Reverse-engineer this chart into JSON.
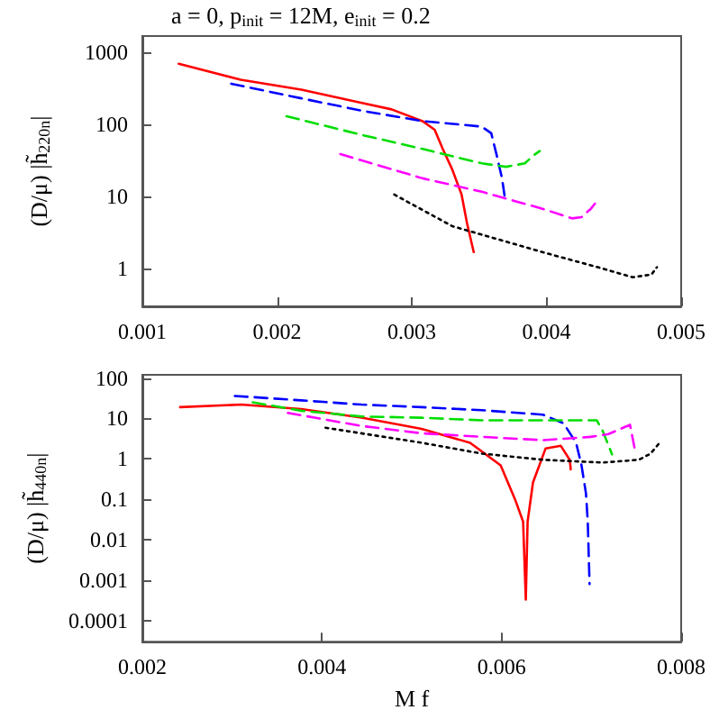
{
  "chart_data": [
    {
      "type": "line",
      "title": "a = 0, p$_{init}$ = 12M, e$_{init}$ = 0.2",
      "ylabel": "(D/μ) |h̃$_{220n}$|",
      "log": "y",
      "xlim": [
        0.001,
        0.005
      ],
      "xticks": [
        0.001,
        0.002,
        0.003,
        0.004,
        0.005
      ],
      "ylim": [
        0.3,
        1700
      ],
      "yticks": [
        1,
        10,
        100,
        1000
      ],
      "series": [
        {
          "color": "#ff0000",
          "line_style": "solid",
          "x": [
            0.00127,
            0.00173,
            0.00218,
            0.00263,
            0.00285,
            0.00308,
            0.00317,
            0.00323,
            0.0033,
            0.00337,
            0.00341,
            0.00346
          ],
          "values": [
            700,
            420,
            306,
            200,
            163,
            112,
            85,
            46,
            24,
            10.7,
            4.3,
            1.7
          ]
        },
        {
          "color": "#0000ff",
          "line_style": "dashed",
          "x": [
            0.00166,
            0.00218,
            0.00263,
            0.00308,
            0.00352,
            0.00359,
            0.00363,
            0.00367,
            0.00369
          ],
          "values": [
            370,
            232,
            156,
            112,
            94,
            76,
            38,
            18,
            10
          ]
        },
        {
          "color": "#00dd00",
          "line_style": "dashed",
          "x": [
            0.00207,
            0.00263,
            0.00308,
            0.00352,
            0.0037,
            0.00384,
            0.0039,
            0.00395
          ],
          "values": [
            131,
            72,
            46,
            29,
            26,
            29,
            37,
            43
          ]
        },
        {
          "color": "#ff00ff",
          "line_style": "dashed",
          "x": [
            0.00247,
            0.00308,
            0.00352,
            0.00397,
            0.00419,
            0.00426,
            0.00433,
            0.00436
          ],
          "values": [
            39,
            18,
            11.7,
            6.8,
            5,
            5.2,
            6.8,
            8
          ]
        },
        {
          "color": "#000000",
          "line_style": "dotted",
          "x": [
            0.00287,
            0.0033,
            0.00397,
            0.00442,
            0.00464,
            0.00478,
            0.00482
          ],
          "values": [
            10.7,
            3.9,
            1.7,
            1.0,
            0.76,
            0.83,
            1.05
          ]
        }
      ]
    },
    {
      "type": "line",
      "xlabel": "M f",
      "ylabel": "(D/μ) |h̃$_{440n}$|",
      "log": "y",
      "xlim": [
        0.002,
        0.008
      ],
      "xticks": [
        0.002,
        0.004,
        0.006,
        0.008
      ],
      "ylim": [
        3e-05,
        120
      ],
      "yticks": [
        0.0001,
        0.001,
        0.01,
        0.1,
        1,
        10,
        100
      ],
      "series": [
        {
          "color": "#ff0000",
          "line_style": "solid",
          "x": [
            0.00242,
            0.0031,
            0.00377,
            0.00444,
            0.00511,
            0.00565,
            0.00599,
            0.00615,
            0.00624,
            0.00627,
            0.00629,
            0.00635,
            0.00649,
            0.00666,
            0.00676,
            0.00677
          ],
          "values": [
            19,
            22,
            17,
            10.5,
            5.5,
            2.5,
            0.69,
            0.1,
            0.028,
            0.00033,
            0.028,
            0.26,
            1.8,
            2.1,
            0.94,
            0.55
          ]
        },
        {
          "color": "#0000ff",
          "line_style": "dashed",
          "x": [
            0.00303,
            0.00377,
            0.00444,
            0.00511,
            0.00578,
            0.00646,
            0.00669,
            0.00683,
            0.00689,
            0.00694,
            0.00696,
            0.00698
          ],
          "values": [
            36,
            28,
            22,
            19,
            16,
            12.4,
            7.6,
            2.5,
            0.7,
            0.14,
            0.028,
            0.0008
          ]
        },
        {
          "color": "#00dd00",
          "line_style": "dashed",
          "x": [
            0.00323,
            0.00377,
            0.00444,
            0.00511,
            0.00578,
            0.00646,
            0.00706,
            0.00713,
            0.00723
          ],
          "values": [
            25,
            15.5,
            11.2,
            10.4,
            9,
            9,
            9,
            4.7,
            1.3
          ]
        },
        {
          "color": "#ff00ff",
          "line_style": "dashed",
          "x": [
            0.00362,
            0.00444,
            0.00511,
            0.00578,
            0.00646,
            0.00699,
            0.00719,
            0.0074,
            0.00743,
            0.00747,
            0.00748
          ],
          "values": [
            13.7,
            6.5,
            4.3,
            3.5,
            2.9,
            3.5,
            4.1,
            6.5,
            7,
            2.5,
            1.9
          ]
        },
        {
          "color": "#000000",
          "line_style": "dotted",
          "x": [
            0.00404,
            0.00511,
            0.00578,
            0.00646,
            0.00713,
            0.00753,
            0.00766,
            0.00776
          ],
          "values": [
            5.9,
            2.5,
            1.35,
            0.95,
            0.81,
            0.95,
            1.35,
            2.5
          ]
        }
      ]
    }
  ]
}
